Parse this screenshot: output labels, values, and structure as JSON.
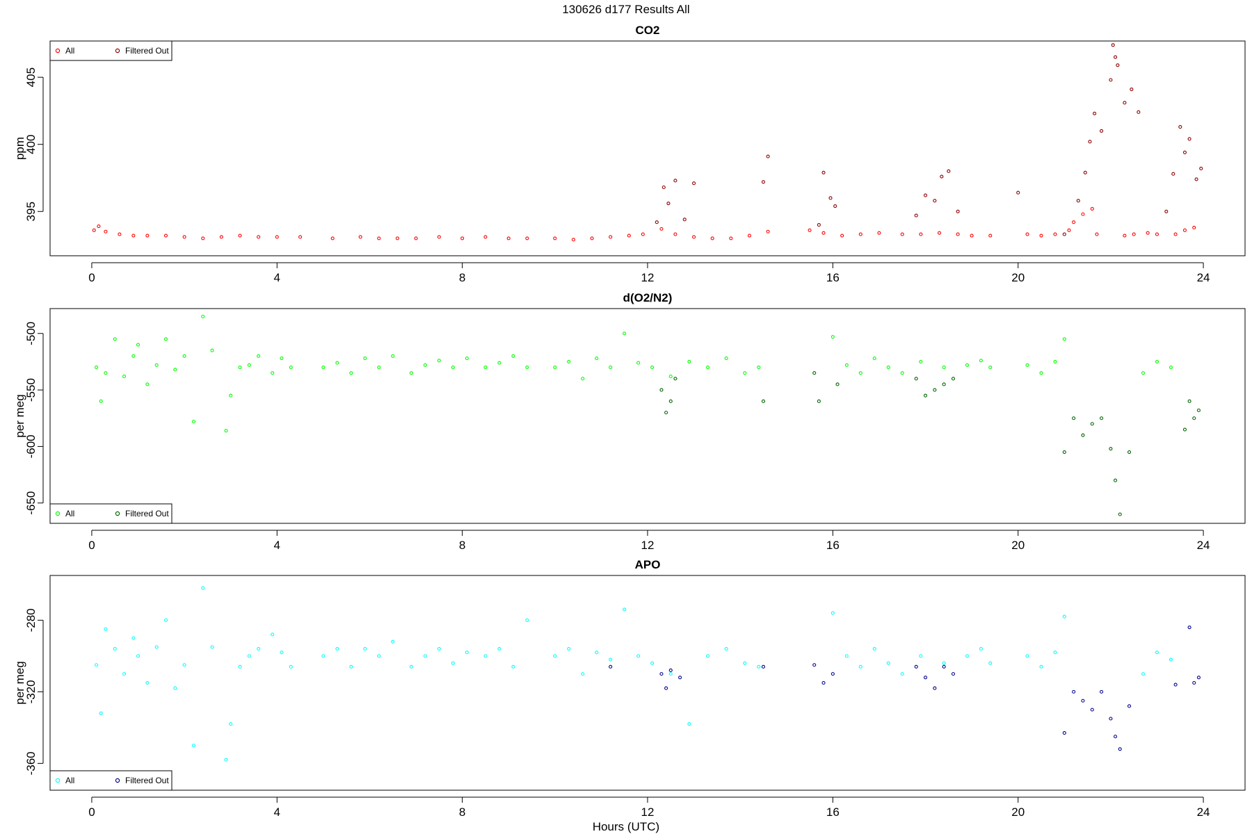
{
  "figure": {
    "title": "130626   d177   Results All",
    "xlabel": "Hours (UTC)"
  },
  "chart_data": [
    {
      "type": "scatter",
      "title": "CO2",
      "ylabel": "ppm",
      "xlim": [
        -0.9,
        24.9
      ],
      "ylim": [
        391.7,
        407.7
      ],
      "xticks": [
        0,
        4,
        8,
        12,
        16,
        20,
        24
      ],
      "yticks": [
        395,
        400,
        405
      ],
      "grid": false,
      "legend_position": "top-left",
      "series": [
        {
          "name": "All",
          "color": "#ff0000",
          "x": [
            0.05,
            0.15,
            0.3,
            0.6,
            0.9,
            1.2,
            1.6,
            2.0,
            2.4,
            2.8,
            3.2,
            3.6,
            4.0,
            4.5,
            5.2,
            5.8,
            6.2,
            6.6,
            7.0,
            7.5,
            8.0,
            8.5,
            9.0,
            9.4,
            10.0,
            10.4,
            10.8,
            11.2,
            11.6,
            11.9,
            12.3,
            12.6,
            13.0,
            13.4,
            13.8,
            14.2,
            14.6,
            15.5,
            15.8,
            16.2,
            16.6,
            17.0,
            17.5,
            17.9,
            18.3,
            18.7,
            19.0,
            19.4,
            20.2,
            20.5,
            20.8,
            21.1,
            21.2,
            21.4,
            21.6,
            21.7,
            22.3,
            22.5,
            22.8,
            23.0,
            23.4,
            23.6,
            23.8
          ],
          "y": [
            393.6,
            393.9,
            393.5,
            393.3,
            393.2,
            393.2,
            393.2,
            393.1,
            393.0,
            393.1,
            393.2,
            393.1,
            393.1,
            393.1,
            393.0,
            393.1,
            393.0,
            393.0,
            393.0,
            393.1,
            393.0,
            393.1,
            393.0,
            393.0,
            393.0,
            392.9,
            393.0,
            393.1,
            393.2,
            393.3,
            393.7,
            393.3,
            393.1,
            393.0,
            393.0,
            393.2,
            393.5,
            393.6,
            393.4,
            393.2,
            393.3,
            393.4,
            393.3,
            393.3,
            393.4,
            393.3,
            393.2,
            393.2,
            393.3,
            393.2,
            393.3,
            393.6,
            394.2,
            394.8,
            395.2,
            393.3,
            393.2,
            393.3,
            393.4,
            393.3,
            393.3,
            393.6,
            393.8
          ]
        },
        {
          "name": "Filtered Out",
          "color": "#8b0000",
          "x": [
            12.2,
            12.35,
            12.45,
            12.6,
            12.8,
            13.0,
            14.5,
            14.6,
            15.7,
            15.8,
            15.95,
            16.05,
            17.8,
            18.0,
            18.2,
            18.35,
            18.5,
            18.7,
            20.0,
            21.0,
            21.3,
            21.45,
            21.55,
            21.65,
            21.8,
            22.0,
            22.05,
            22.1,
            22.15,
            22.3,
            22.45,
            22.6,
            23.2,
            23.35,
            23.5,
            23.6,
            23.7,
            23.85,
            23.95
          ],
          "y": [
            394.2,
            396.8,
            395.6,
            397.3,
            394.4,
            397.1,
            397.2,
            399.1,
            394.0,
            397.9,
            396.0,
            395.4,
            394.7,
            396.2,
            395.8,
            397.6,
            398.0,
            395.0,
            396.4,
            393.3,
            395.8,
            397.9,
            400.2,
            402.3,
            401.0,
            404.8,
            407.4,
            406.5,
            405.9,
            403.1,
            404.1,
            402.4,
            395.0,
            397.8,
            401.3,
            399.4,
            400.4,
            397.4,
            398.2
          ]
        }
      ]
    },
    {
      "type": "scatter",
      "title": "d(O2/N2)",
      "ylabel": "per meg",
      "xlim": [
        -0.9,
        24.9
      ],
      "ylim": [
        -668,
        -478
      ],
      "xticks": [
        0,
        4,
        8,
        12,
        16,
        20,
        24
      ],
      "yticks": [
        -500,
        -550,
        -600,
        -650
      ],
      "grid": false,
      "legend_position": "bottom-left",
      "series": [
        {
          "name": "All",
          "color": "#00ff00",
          "x": [
            0.1,
            0.2,
            0.3,
            0.5,
            0.7,
            0.9,
            1.0,
            1.2,
            1.4,
            1.6,
            1.8,
            2.0,
            2.2,
            2.4,
            2.6,
            2.9,
            3.0,
            3.2,
            3.4,
            3.6,
            3.9,
            4.1,
            4.3,
            5.0,
            5.3,
            5.6,
            5.9,
            6.2,
            6.5,
            6.9,
            7.2,
            7.5,
            7.8,
            8.1,
            8.5,
            8.8,
            9.1,
            9.4,
            10.0,
            10.3,
            10.6,
            10.9,
            11.2,
            11.5,
            11.8,
            12.1,
            12.5,
            12.9,
            13.3,
            13.7,
            14.1,
            14.4,
            16.0,
            16.3,
            16.6,
            16.9,
            17.2,
            17.5,
            17.9,
            18.4,
            18.9,
            19.2,
            19.4,
            20.2,
            20.5,
            20.8,
            21.0,
            22.7,
            23.0,
            23.3
          ],
          "y": [
            -530,
            -560,
            -535,
            -505,
            -538,
            -520,
            -510,
            -545,
            -528,
            -505,
            -532,
            -520,
            -578,
            -485,
            -515,
            -586,
            -555,
            -530,
            -528,
            -520,
            -535,
            -522,
            -530,
            -530,
            -526,
            -535,
            -522,
            -530,
            -520,
            -535,
            -528,
            -524,
            -530,
            -522,
            -530,
            -526,
            -520,
            -530,
            -530,
            -525,
            -540,
            -522,
            -530,
            -500,
            -526,
            -530,
            -538,
            -525,
            -530,
            -522,
            -535,
            -530,
            -503,
            -528,
            -535,
            -522,
            -530,
            -535,
            -525,
            -530,
            -528,
            -524,
            -530,
            -528,
            -535,
            -525,
            -505,
            -535,
            -525,
            -530
          ]
        },
        {
          "name": "Filtered Out",
          "color": "#006400",
          "x": [
            12.3,
            12.4,
            12.5,
            12.6,
            14.5,
            15.6,
            15.7,
            16.1,
            17.8,
            18.0,
            18.2,
            18.4,
            18.6,
            21.0,
            21.2,
            21.4,
            21.6,
            21.8,
            22.0,
            22.1,
            22.2,
            22.4,
            23.6,
            23.7,
            23.8,
            23.9
          ],
          "y": [
            -550,
            -570,
            -560,
            -540,
            -560,
            -535,
            -560,
            -545,
            -540,
            -555,
            -550,
            -545,
            -540,
            -605,
            -575,
            -590,
            -580,
            -575,
            -602,
            -630,
            -660,
            -605,
            -585,
            -560,
            -575,
            -568
          ]
        }
      ]
    },
    {
      "type": "scatter",
      "title": "APO",
      "ylabel": "per meg",
      "xlim": [
        -0.9,
        24.9
      ],
      "ylim": [
        -375,
        -255
      ],
      "xticks": [
        0,
        4,
        8,
        12,
        16,
        20,
        24
      ],
      "yticks": [
        -280,
        -320,
        -360
      ],
      "grid": false,
      "legend_position": "bottom-left",
      "series": [
        {
          "name": "All",
          "color": "#00ffff",
          "x": [
            0.1,
            0.2,
            0.3,
            0.5,
            0.7,
            0.9,
            1.0,
            1.2,
            1.4,
            1.6,
            1.8,
            2.0,
            2.2,
            2.4,
            2.6,
            2.9,
            3.0,
            3.2,
            3.4,
            3.6,
            3.9,
            4.1,
            4.3,
            5.0,
            5.3,
            5.6,
            5.9,
            6.2,
            6.5,
            6.9,
            7.2,
            7.5,
            7.8,
            8.1,
            8.5,
            8.8,
            9.1,
            9.4,
            10.0,
            10.3,
            10.6,
            10.9,
            11.2,
            11.5,
            11.8,
            12.1,
            12.5,
            12.9,
            13.3,
            13.7,
            14.1,
            14.4,
            16.0,
            16.3,
            16.6,
            16.9,
            17.2,
            17.5,
            17.9,
            18.4,
            18.9,
            19.2,
            19.4,
            20.2,
            20.5,
            20.8,
            21.0,
            22.7,
            23.0,
            23.3
          ],
          "y": [
            -305,
            -332,
            -285,
            -296,
            -310,
            -290,
            -300,
            -315,
            -295,
            -280,
            -318,
            -305,
            -350,
            -262,
            -295,
            -358,
            -338,
            -306,
            -300,
            -296,
            -288,
            -298,
            -306,
            -300,
            -296,
            -306,
            -296,
            -300,
            -292,
            -306,
            -300,
            -296,
            -304,
            -298,
            -300,
            -296,
            -306,
            -280,
            -300,
            -296,
            -310,
            -298,
            -302,
            -274,
            -300,
            -304,
            -310,
            -338,
            -300,
            -296,
            -304,
            -306,
            -276,
            -300,
            -306,
            -296,
            -304,
            -310,
            -300,
            -304,
            -300,
            -296,
            -304,
            -300,
            -306,
            -298,
            -278,
            -310,
            -298,
            -302
          ]
        },
        {
          "name": "Filtered Out",
          "color": "#00008b",
          "x": [
            11.2,
            12.3,
            12.4,
            12.5,
            12.7,
            14.5,
            15.6,
            15.8,
            16.0,
            17.8,
            18.0,
            18.2,
            18.4,
            18.6,
            21.0,
            21.2,
            21.4,
            21.6,
            21.8,
            22.0,
            22.1,
            22.2,
            22.4,
            23.4,
            23.7,
            23.8,
            23.9
          ],
          "y": [
            -306,
            -310,
            -318,
            -308,
            -312,
            -306,
            -305,
            -315,
            -310,
            -306,
            -312,
            -318,
            -306,
            -310,
            -343,
            -320,
            -325,
            -330,
            -320,
            -335,
            -345,
            -352,
            -328,
            -316,
            -284,
            -315,
            -312
          ]
        }
      ]
    }
  ]
}
